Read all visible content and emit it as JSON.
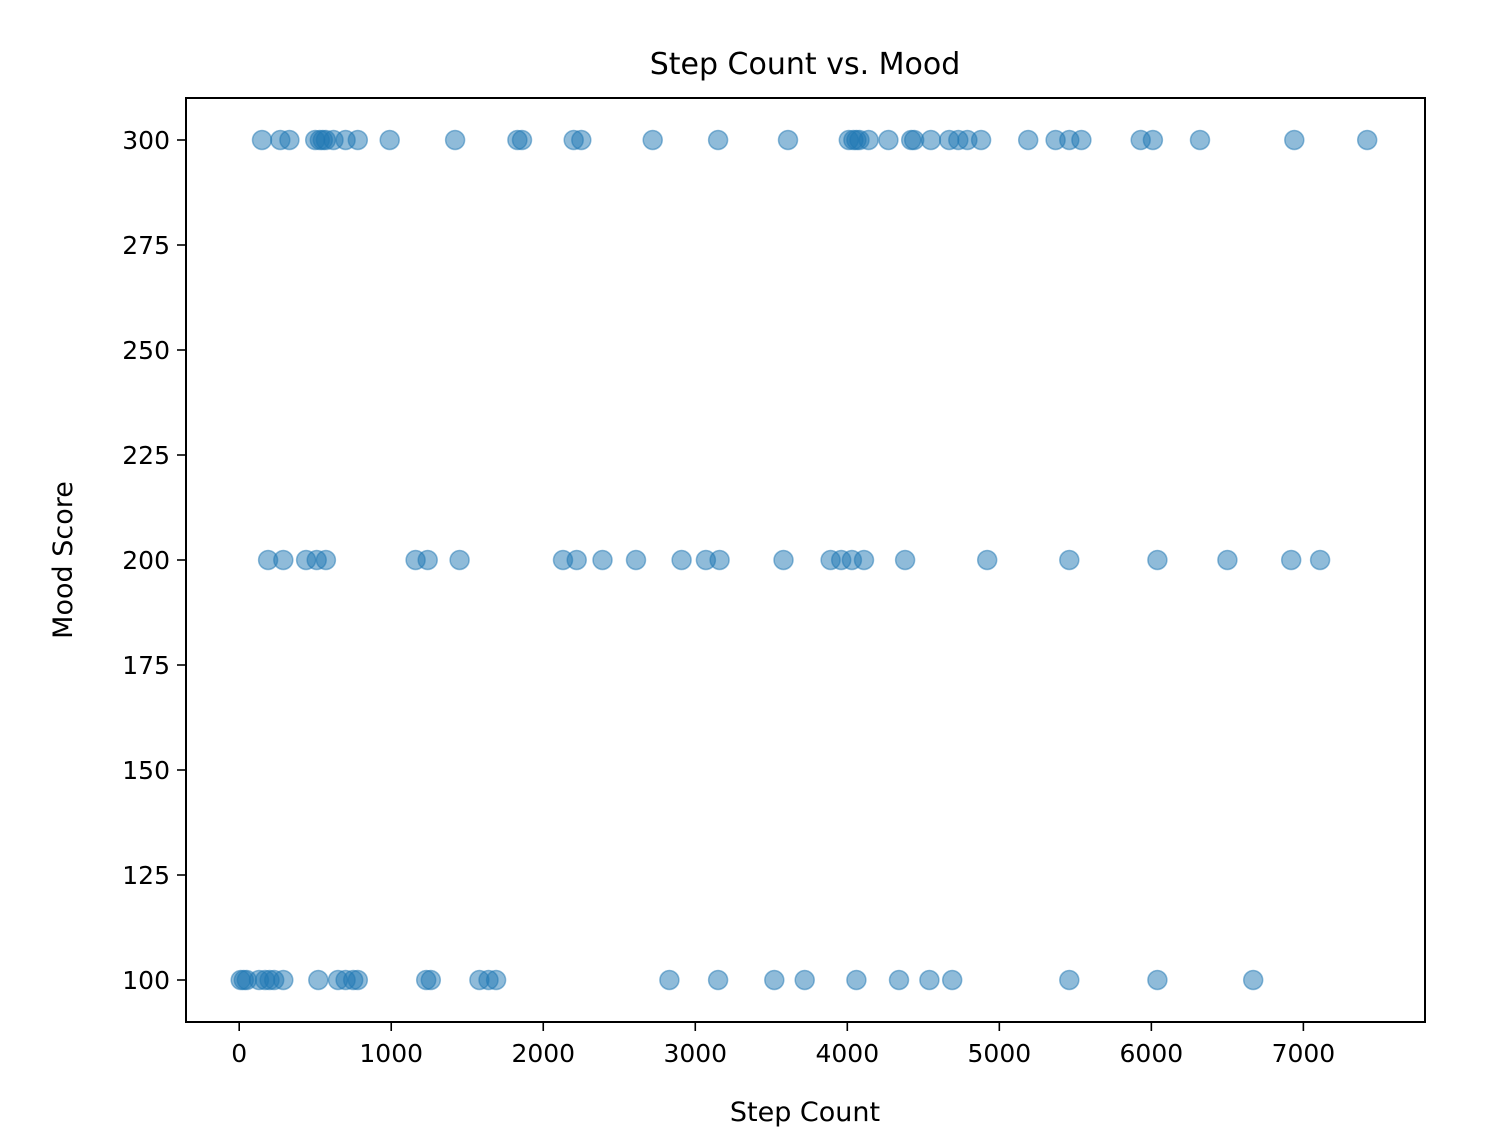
{
  "chart_data": {
    "type": "scatter",
    "title": "Step Count vs. Mood",
    "xlabel": "Step Count",
    "ylabel": "Mood Score",
    "xlim": [
      -350,
      7800
    ],
    "ylim": [
      90,
      310
    ],
    "xticks": [
      0,
      1000,
      2000,
      3000,
      4000,
      5000,
      6000,
      7000
    ],
    "yticks": [
      100,
      125,
      150,
      175,
      200,
      225,
      250,
      275,
      300
    ],
    "grid": false,
    "legend": "none",
    "color": "#1f77b4",
    "series": [
      {
        "points": [
          [
            150,
            300
          ],
          [
            270,
            300
          ],
          [
            330,
            300
          ],
          [
            500,
            300
          ],
          [
            530,
            300
          ],
          [
            550,
            300
          ],
          [
            570,
            300
          ],
          [
            620,
            300
          ],
          [
            700,
            300
          ],
          [
            780,
            300
          ],
          [
            990,
            300
          ],
          [
            1420,
            300
          ],
          [
            1830,
            300
          ],
          [
            1860,
            300
          ],
          [
            2200,
            300
          ],
          [
            2250,
            300
          ],
          [
            2720,
            300
          ],
          [
            3150,
            300
          ],
          [
            3610,
            300
          ],
          [
            4010,
            300
          ],
          [
            4040,
            300
          ],
          [
            4060,
            300
          ],
          [
            4080,
            300
          ],
          [
            4140,
            300
          ],
          [
            4270,
            300
          ],
          [
            4420,
            300
          ],
          [
            4440,
            300
          ],
          [
            4550,
            300
          ],
          [
            4670,
            300
          ],
          [
            4730,
            300
          ],
          [
            4790,
            300
          ],
          [
            4880,
            300
          ],
          [
            5190,
            300
          ],
          [
            5370,
            300
          ],
          [
            5460,
            300
          ],
          [
            5540,
            300
          ],
          [
            5930,
            300
          ],
          [
            6010,
            300
          ],
          [
            6320,
            300
          ],
          [
            6940,
            300
          ],
          [
            7420,
            300
          ],
          [
            190,
            200
          ],
          [
            290,
            200
          ],
          [
            440,
            200
          ],
          [
            510,
            200
          ],
          [
            570,
            200
          ],
          [
            1160,
            200
          ],
          [
            1240,
            200
          ],
          [
            1450,
            200
          ],
          [
            2130,
            200
          ],
          [
            2220,
            200
          ],
          [
            2390,
            200
          ],
          [
            2610,
            200
          ],
          [
            2910,
            200
          ],
          [
            3070,
            200
          ],
          [
            3160,
            200
          ],
          [
            3580,
            200
          ],
          [
            3890,
            200
          ],
          [
            3960,
            200
          ],
          [
            4030,
            200
          ],
          [
            4110,
            200
          ],
          [
            4380,
            200
          ],
          [
            4920,
            200
          ],
          [
            5460,
            200
          ],
          [
            6040,
            200
          ],
          [
            6500,
            200
          ],
          [
            6920,
            200
          ],
          [
            7110,
            200
          ],
          [
            10,
            100
          ],
          [
            30,
            100
          ],
          [
            50,
            100
          ],
          [
            130,
            100
          ],
          [
            170,
            100
          ],
          [
            200,
            100
          ],
          [
            230,
            100
          ],
          [
            290,
            100
          ],
          [
            520,
            100
          ],
          [
            650,
            100
          ],
          [
            700,
            100
          ],
          [
            750,
            100
          ],
          [
            780,
            100
          ],
          [
            1230,
            100
          ],
          [
            1260,
            100
          ],
          [
            1580,
            100
          ],
          [
            1640,
            100
          ],
          [
            1690,
            100
          ],
          [
            2830,
            100
          ],
          [
            3150,
            100
          ],
          [
            3520,
            100
          ],
          [
            3720,
            100
          ],
          [
            4060,
            100
          ],
          [
            4340,
            100
          ],
          [
            4540,
            100
          ],
          [
            4690,
            100
          ],
          [
            5460,
            100
          ],
          [
            6040,
            100
          ],
          [
            6670,
            100
          ]
        ]
      }
    ]
  }
}
